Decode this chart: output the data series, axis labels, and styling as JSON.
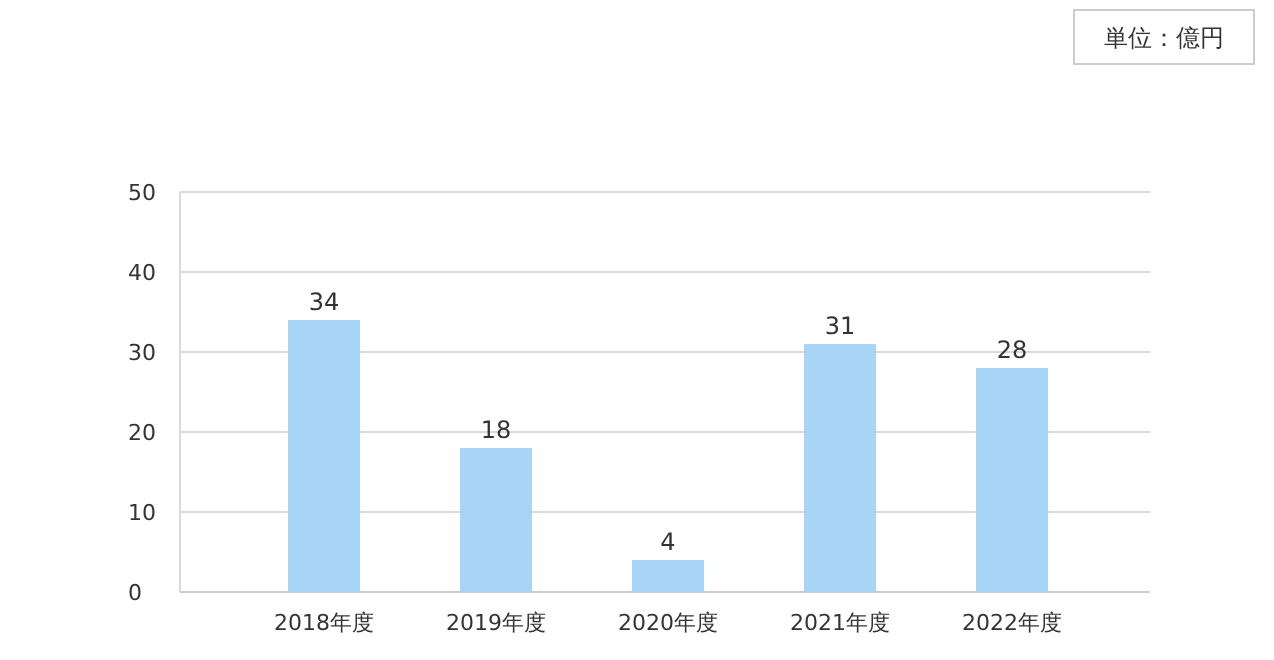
{
  "chart_data": {
    "type": "bar",
    "categories": [
      "2018年度",
      "2019年度",
      "2020年度",
      "2021年度",
      "2022年度"
    ],
    "values": [
      34,
      18,
      4,
      31,
      28
    ],
    "color": "#a8d4f6",
    "ylim": [
      0,
      50
    ],
    "yticks": [
      0,
      10,
      20,
      30,
      40,
      50
    ],
    "grid": "y",
    "data_labels": true,
    "annotations": [
      "単位：億円"
    ]
  }
}
